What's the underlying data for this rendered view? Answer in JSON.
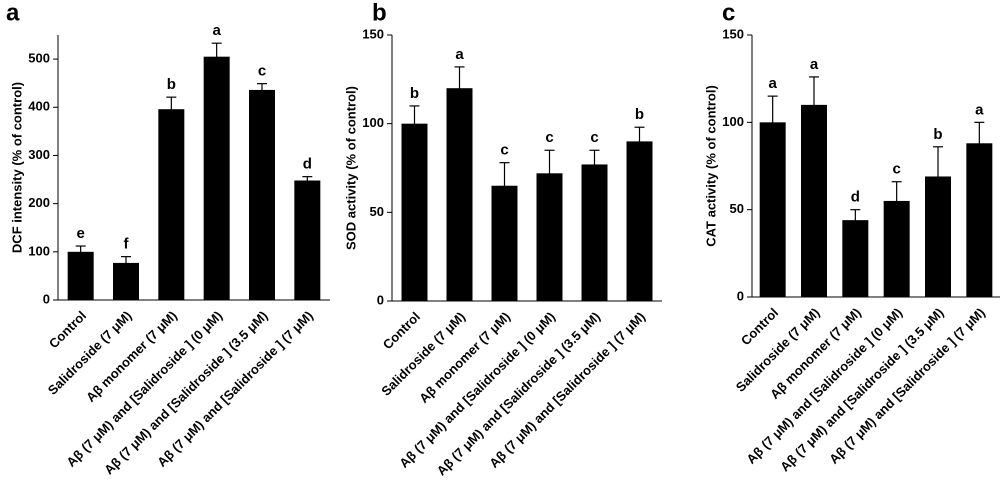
{
  "chart_data": [
    {
      "type": "bar",
      "panel_label": "a",
      "y_label": "DCF intensity (% of control)",
      "categories": [
        "Control",
        "Salidroside (7 μM)",
        "Aβ monomer (7 μM)",
        "Aβ (7 μM) and [Salidroside ] (0 μM)",
        "Aβ (7 μM) and [Salidroside ] (3.5 μM)",
        "Aβ (7 μM) and [Salidroside ] (7 μM)"
      ],
      "values": [
        100,
        77,
        396,
        505,
        436,
        248
      ],
      "errors": [
        12,
        13,
        25,
        28,
        13,
        8
      ],
      "annotations": [
        "e",
        "f",
        "b",
        "a",
        "c",
        "d"
      ],
      "color": "#000000",
      "ylim": [
        0,
        550
      ],
      "yticks": [
        0,
        100,
        200,
        300,
        400,
        500
      ]
    },
    {
      "type": "bar",
      "panel_label": "b",
      "y_label": "SOD activity (% of control)",
      "categories": [
        "Control",
        "Salidroside (7 μM)",
        "Aβ monomer (7 μM)",
        "Aβ (7 μM) and [Salidroside ] (0 μM)",
        "Aβ (7 μM) and [Salidroside ] (3.5 μM)",
        "Aβ (7 μM) and [Salidroside ] (7 μM)"
      ],
      "values": [
        100,
        120,
        65,
        72,
        77,
        90
      ],
      "errors": [
        10,
        12,
        13,
        13,
        8,
        8
      ],
      "annotations": [
        "b",
        "a",
        "c",
        "c",
        "c",
        "b"
      ],
      "color": "#000000",
      "ylim": [
        0,
        150
      ],
      "yticks": [
        0,
        50,
        100,
        150
      ]
    },
    {
      "type": "bar",
      "panel_label": "c",
      "y_label": "CAT activity (% of control)",
      "categories": [
        "Control",
        "Salidroside (7 μM)",
        "Aβ monomer (7 μM)",
        "Aβ (7 μM) and [Salidroside ] (0 μM)",
        "Aβ (7 μM) and [Salidroside ] (3.5 μM)",
        "Aβ (7 μM) and [Salidroside ] (7 μM)"
      ],
      "values": [
        100,
        110,
        44,
        55,
        69,
        88
      ],
      "errors": [
        15,
        16,
        6,
        11,
        17,
        12
      ],
      "annotations": [
        "a",
        "a",
        "d",
        "c",
        "b",
        "a"
      ],
      "color": "#000000",
      "ylim": [
        0,
        150
      ],
      "yticks": [
        0,
        50,
        100,
        150
      ]
    }
  ]
}
